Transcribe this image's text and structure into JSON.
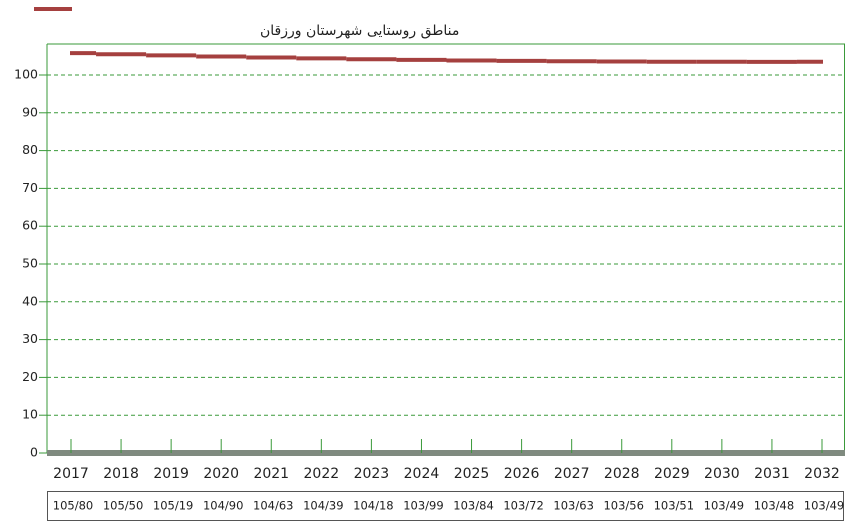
{
  "chart_data": {
    "type": "line",
    "categories": [
      "2017",
      "2018",
      "2019",
      "2020",
      "2021",
      "2022",
      "2023",
      "2024",
      "2025",
      "2026",
      "2027",
      "2028",
      "2029",
      "2030",
      "2031",
      "2032"
    ],
    "series": [
      {
        "name": "مناطق روستایی شهرستان ورزقان",
        "color": "#a5403f",
        "values": [
          105.8,
          105.5,
          105.19,
          104.9,
          104.63,
          104.39,
          104.18,
          103.99,
          103.84,
          103.72,
          103.63,
          103.56,
          103.51,
          103.49,
          103.48,
          103.49
        ],
        "value_labels": [
          "105/80",
          "105/50",
          "105/19",
          "104/90",
          "104/63",
          "104/39",
          "104/18",
          "103/99",
          "103/84",
          "103/72",
          "103/63",
          "103/56",
          "103/51",
          "103/49",
          "103/48",
          "103/49"
        ]
      }
    ],
    "ylim": [
      0,
      108.2
    ],
    "yticks": [
      0,
      10,
      20,
      30,
      40,
      50,
      60,
      70,
      80,
      90,
      100
    ],
    "grid": true
  }
}
